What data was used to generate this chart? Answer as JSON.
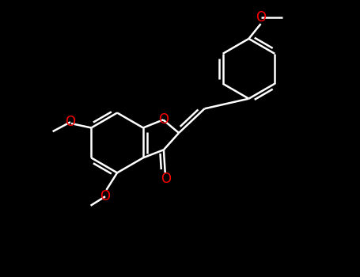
{
  "bg": "#000000",
  "bond_color": "#ffffff",
  "O_color": "#ff0000",
  "lw": 1.8,
  "fig_w": 4.55,
  "fig_h": 3.5,
  "dpi": 100,
  "xlim": [
    -1,
    11
  ],
  "ylim": [
    -1,
    8.7
  ]
}
